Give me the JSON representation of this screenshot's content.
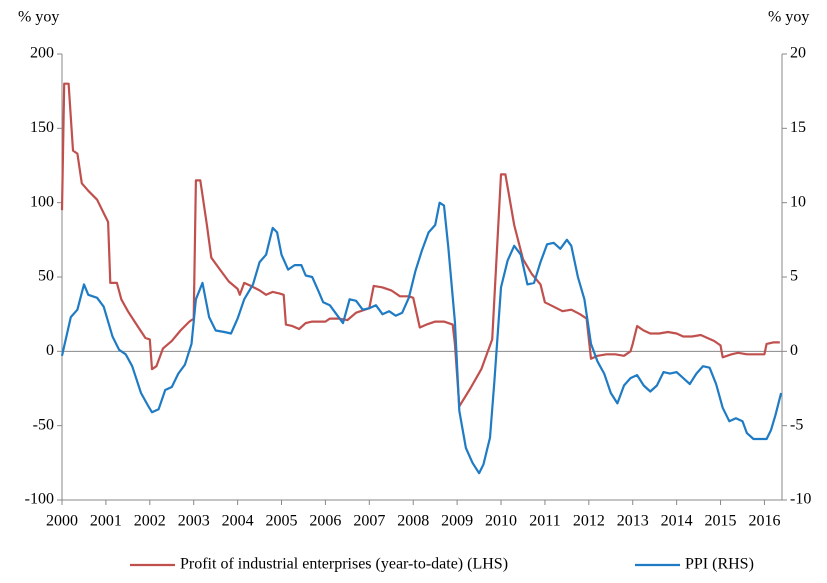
{
  "chart_data": {
    "type": "line",
    "y_label": "% yoy",
    "y2_label": "% yoy",
    "xlim": [
      2000,
      2016.4
    ],
    "xticks": [
      2000,
      2001,
      2002,
      2003,
      2004,
      2005,
      2006,
      2007,
      2008,
      2009,
      2010,
      2011,
      2012,
      2013,
      2014,
      2015,
      2016
    ],
    "ylim": [
      -100,
      200
    ],
    "yticks": [
      -100,
      -50,
      0,
      50,
      100,
      150,
      200
    ],
    "y2lim": [
      -10,
      20
    ],
    "y2ticks": [
      -10,
      -5,
      0,
      5,
      10,
      15,
      20
    ],
    "legend": "bottom",
    "series": [
      {
        "name": "Profit of industrial enterprises (year-to-date) (LHS)",
        "color": "#c0504d",
        "x": [
          2000.0,
          2000.05,
          2000.15,
          2000.25,
          2000.35,
          2000.45,
          2000.6,
          2000.8,
          2000.95,
          2001.05,
          2001.1,
          2001.25,
          2001.35,
          2001.5,
          2001.7,
          2001.9,
          2002.0,
          2002.05,
          2002.15,
          2002.3,
          2002.5,
          2002.7,
          2002.9,
          2003.0,
          2003.05,
          2003.15,
          2003.3,
          2003.4,
          2003.6,
          2003.8,
          2004.0,
          2004.05,
          2004.15,
          2004.3,
          2004.5,
          2004.65,
          2004.8,
          2004.95,
          2005.05,
          2005.1,
          2005.25,
          2005.4,
          2005.55,
          2005.7,
          2005.9,
          2006.0,
          2006.1,
          2006.3,
          2006.5,
          2006.7,
          2006.9,
          2007.0,
          2007.1,
          2007.3,
          2007.5,
          2007.7,
          2007.9,
          2008.0,
          2008.15,
          2008.3,
          2008.5,
          2008.7,
          2008.9,
          2008.95,
          2009.05,
          2009.3,
          2009.55,
          2009.8,
          2010.0,
          2010.1,
          2010.3,
          2010.5,
          2010.7,
          2010.9,
          2011.0,
          2011.2,
          2011.4,
          2011.6,
          2011.8,
          2011.95,
          2012.05,
          2012.2,
          2012.4,
          2012.6,
          2012.8,
          2012.95,
          2013.0,
          2013.1,
          2013.25,
          2013.4,
          2013.6,
          2013.8,
          2014.0,
          2014.15,
          2014.35,
          2014.55,
          2014.7,
          2014.85,
          2015.0,
          2015.05,
          2015.25,
          2015.4,
          2015.6,
          2015.8,
          2016.0,
          2016.05,
          2016.2,
          2016.35
        ],
        "values": [
          95,
          180,
          180,
          135,
          133,
          113,
          108,
          102,
          93,
          87,
          46,
          46,
          35,
          27,
          18,
          9,
          8,
          -12,
          -10,
          2,
          7,
          14,
          20,
          22,
          115,
          115,
          85,
          63,
          55,
          47,
          42,
          38,
          46,
          44,
          41,
          38,
          40,
          39,
          38,
          18,
          17,
          15,
          19,
          20,
          20,
          20,
          22,
          22,
          21,
          26,
          28,
          29,
          44,
          43,
          41,
          37,
          37,
          36,
          16,
          18,
          20,
          20,
          18,
          5,
          -37,
          -25,
          -12,
          8,
          119,
          119,
          85,
          62,
          52,
          45,
          33,
          30,
          27,
          28,
          25,
          22,
          -5,
          -3,
          -2,
          -2,
          -3,
          0,
          5,
          17,
          14,
          12,
          12,
          13,
          12,
          10,
          10,
          11,
          9,
          7,
          4,
          -4,
          -2,
          -1,
          -2,
          -2,
          -2,
          5,
          6,
          6
        ]
      },
      {
        "name": "PPI (RHS)",
        "color": "#1f7bc4",
        "axis": "y2",
        "x": [
          2000.0,
          2000.1,
          2000.2,
          2000.35,
          2000.5,
          2000.6,
          2000.8,
          2000.95,
          2001.05,
          2001.15,
          2001.3,
          2001.45,
          2001.6,
          2001.8,
          2001.95,
          2002.05,
          2002.2,
          2002.35,
          2002.5,
          2002.65,
          2002.8,
          2002.95,
          2003.05,
          2003.2,
          2003.35,
          2003.5,
          2003.7,
          2003.85,
          2004.0,
          2004.15,
          2004.35,
          2004.5,
          2004.65,
          2004.8,
          2004.9,
          2005.0,
          2005.15,
          2005.3,
          2005.45,
          2005.55,
          2005.7,
          2005.85,
          2005.95,
          2006.1,
          2006.25,
          2006.4,
          2006.55,
          2006.7,
          2006.85,
          2007.0,
          2007.15,
          2007.3,
          2007.45,
          2007.6,
          2007.75,
          2007.9,
          2008.05,
          2008.2,
          2008.35,
          2008.5,
          2008.6,
          2008.7,
          2008.8,
          2008.95,
          2009.05,
          2009.2,
          2009.35,
          2009.5,
          2009.6,
          2009.75,
          2009.85,
          2010.0,
          2010.15,
          2010.3,
          2010.45,
          2010.6,
          2010.75,
          2010.9,
          2011.05,
          2011.2,
          2011.35,
          2011.5,
          2011.6,
          2011.75,
          2011.9,
          2012.05,
          2012.2,
          2012.35,
          2012.5,
          2012.65,
          2012.8,
          2012.95,
          2013.1,
          2013.25,
          2013.4,
          2013.55,
          2013.7,
          2013.85,
          2014.0,
          2014.15,
          2014.3,
          2014.45,
          2014.6,
          2014.75,
          2014.9,
          2015.05,
          2015.2,
          2015.35,
          2015.5,
          2015.6,
          2015.75,
          2015.9,
          2016.05,
          2016.15,
          2016.25,
          2016.38
        ],
        "values": [
          -0.3,
          1,
          2.3,
          2.8,
          4.5,
          3.8,
          3.6,
          3,
          2,
          1,
          0.1,
          -0.2,
          -1,
          -2.8,
          -3.6,
          -4.1,
          -3.9,
          -2.6,
          -2.4,
          -1.5,
          -0.9,
          0.5,
          3.5,
          4.6,
          2.3,
          1.4,
          1.3,
          1.2,
          2.2,
          3.5,
          4.5,
          6,
          6.5,
          8.3,
          8,
          6.5,
          5.5,
          5.8,
          5.8,
          5.1,
          5,
          4,
          3.3,
          3.1,
          2.5,
          1.9,
          3.5,
          3.4,
          2.8,
          2.9,
          3.1,
          2.5,
          2.7,
          2.4,
          2.6,
          3.6,
          5.4,
          6.8,
          8,
          8.5,
          10,
          9.8,
          7,
          2,
          -4,
          -6.5,
          -7.5,
          -8.2,
          -7.6,
          -5.8,
          -2,
          4.3,
          6.1,
          7.1,
          6.5,
          4.5,
          4.6,
          6,
          7.2,
          7.3,
          6.9,
          7.5,
          7.1,
          5,
          3.5,
          0.5,
          -0.7,
          -1.5,
          -2.8,
          -3.5,
          -2.3,
          -1.8,
          -1.6,
          -2.3,
          -2.7,
          -2.3,
          -1.4,
          -1.5,
          -1.4,
          -1.8,
          -2.2,
          -1.5,
          -1,
          -1.1,
          -2.2,
          -3.8,
          -4.7,
          -4.5,
          -4.7,
          -5.5,
          -5.9,
          -5.9,
          -5.9,
          -5.3,
          -4.3,
          -2.8
        ]
      }
    ]
  }
}
